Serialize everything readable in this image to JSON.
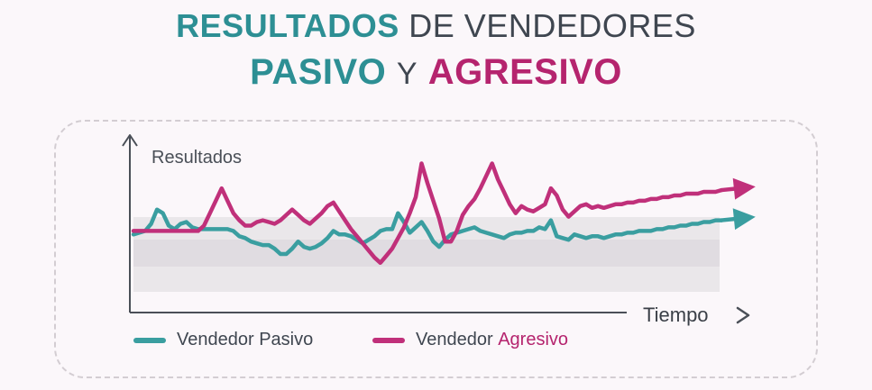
{
  "title": {
    "line1_strong": "RESULTADOS",
    "line1_rest": "DE VENDEDORES",
    "line2_a": "PASIVO",
    "line2_y": "Y",
    "line2_b": "AGRESIVO"
  },
  "legend": {
    "pasivo": "Vendedor Pasivo",
    "agresivo_prefix": "Vendedor ",
    "agresivo_word": "Agresivo"
  },
  "colors": {
    "pasivo": "#3a9ea0",
    "agresivo": "#c0307a",
    "band": "#e4e1e4",
    "axis": "#4a4f57"
  },
  "chart_data": {
    "type": "line",
    "title": "RESULTADOS DE VENDEDORES PASIVO Y AGRESIVO",
    "xlabel": "Tiempo",
    "ylabel": "Resultados",
    "x": [
      0,
      1,
      2,
      3,
      4,
      5,
      6,
      7,
      8,
      9,
      10,
      11,
      12,
      13,
      14,
      15,
      16,
      17,
      18,
      19,
      20,
      21,
      22,
      23,
      24,
      25,
      26,
      27,
      28,
      29,
      30,
      31,
      32,
      33,
      34,
      35,
      36,
      37,
      38,
      39,
      40,
      41,
      42,
      43,
      44,
      45,
      46,
      47,
      48,
      49,
      50,
      51,
      52,
      53,
      54,
      55,
      56,
      57,
      58,
      59,
      60,
      61,
      62,
      63,
      64,
      65,
      66,
      67,
      68,
      69,
      70,
      71,
      72,
      73,
      74,
      75,
      76,
      77,
      78,
      79,
      80,
      81,
      82,
      83,
      84,
      85,
      86,
      87,
      88,
      89,
      90,
      91,
      92,
      93,
      94,
      95,
      96,
      97,
      98,
      99,
      100
    ],
    "ylim": [
      0,
      100
    ],
    "series": [
      {
        "name": "Vendedor Pasivo",
        "values": [
          44,
          45,
          46,
          50,
          58,
          56,
          49,
          47,
          50,
          51,
          48,
          47,
          47,
          47,
          47,
          47,
          47,
          46,
          43,
          42,
          40,
          39,
          38,
          38,
          36,
          33,
          33,
          36,
          40,
          37,
          36,
          37,
          39,
          42,
          46,
          44,
          44,
          43,
          41,
          39,
          41,
          43,
          46,
          47,
          47,
          56,
          51,
          45,
          48,
          51,
          46,
          40,
          37,
          41,
          44,
          45,
          46,
          47,
          48,
          46,
          45,
          44,
          43,
          42,
          44,
          45,
          45,
          46,
          46,
          48,
          47,
          52,
          43,
          42,
          41,
          44,
          43,
          42,
          43,
          43,
          42,
          43,
          44,
          44,
          45,
          45,
          46,
          46,
          46,
          47,
          47,
          48,
          48,
          49,
          49,
          50,
          50,
          51,
          51,
          52,
          52
        ],
        "arrow": true
      },
      {
        "name": "Vendedor Agresivo",
        "values": [
          46,
          46,
          46,
          46,
          46,
          46,
          46,
          46,
          46,
          46,
          46,
          46,
          49,
          56,
          63,
          70,
          63,
          56,
          52,
          49,
          49,
          51,
          52,
          51,
          50,
          52,
          55,
          58,
          55,
          52,
          50,
          53,
          56,
          60,
          62,
          57,
          52,
          47,
          43,
          39,
          35,
          31,
          28,
          32,
          36,
          42,
          48,
          56,
          65,
          84,
          73,
          63,
          53,
          40,
          40,
          46,
          55,
          60,
          64,
          70,
          77,
          84,
          75,
          68,
          61,
          56,
          60,
          58,
          57,
          59,
          61,
          70,
          66,
          58,
          54,
          57,
          60,
          61,
          59,
          60,
          59,
          60,
          61,
          61,
          62,
          62,
          63,
          63,
          64,
          64,
          65,
          65,
          66,
          66,
          67,
          67,
          67,
          68,
          68,
          68,
          69
        ],
        "arrow": true
      }
    ]
  }
}
